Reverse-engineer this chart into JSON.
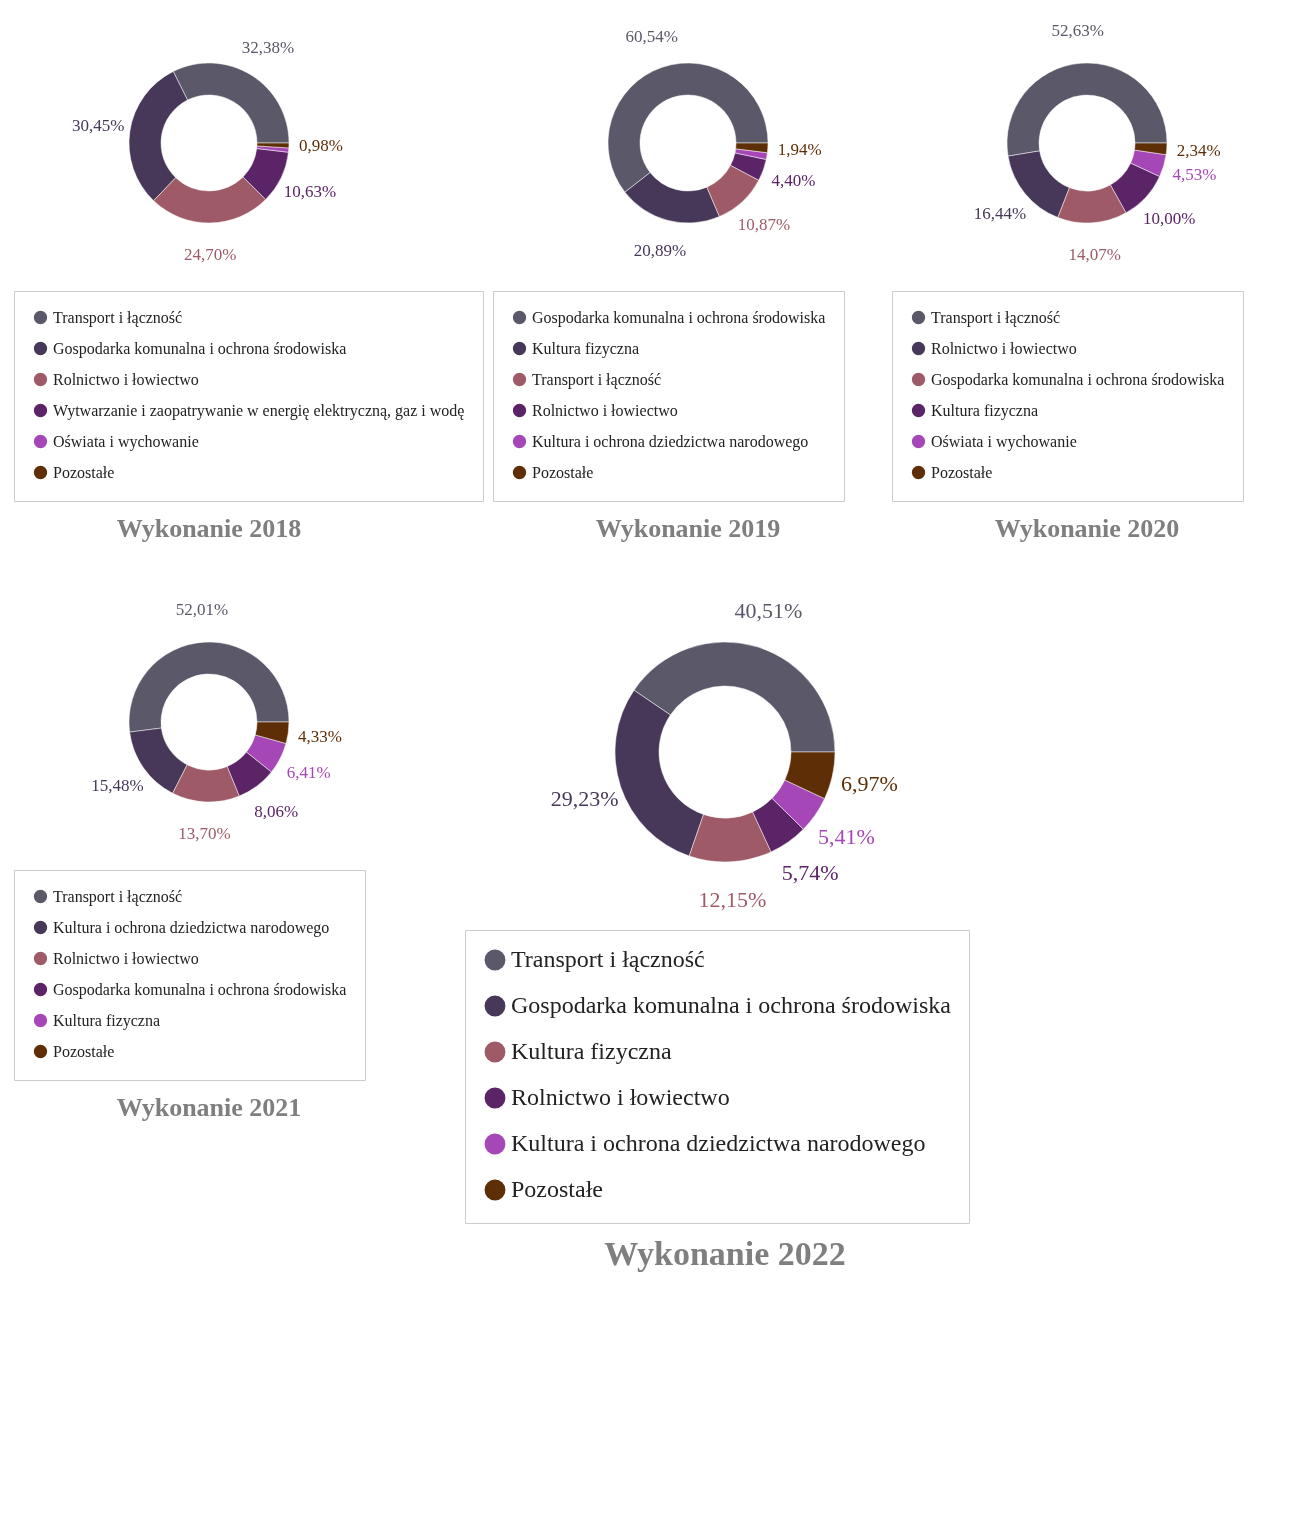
{
  "chart_data": [
    {
      "type": "donut",
      "title": "Wykonanie 2018",
      "legend": "bottom",
      "categories": [
        "Transport i łączność",
        "Gospodarka komunalna i ochrona środowiska",
        "Rolnictwo i łowiectwo",
        "Wytwarzanie i zaopatrywanie w energię elektryczną, gaz i wodę",
        "Oświata i wychowanie",
        "Pozostałe"
      ],
      "values": [
        32.38,
        30.45,
        24.7,
        10.63,
        0.86,
        0.98
      ],
      "value_labels": [
        "32,38%",
        "30,45%",
        "24,70%",
        "10,63%",
        null,
        "0,98%"
      ],
      "colors": [
        "#5b5869",
        "#47385a",
        "#9e5a66",
        "#5a2466",
        "#a647b8",
        "#5e2e06"
      ]
    },
    {
      "type": "donut",
      "title": "Wykonanie 2019",
      "legend": "bottom",
      "categories": [
        "Gospodarka komunalna i ochrona środowiska",
        "Kultura fizyczna",
        "Transport i łączność",
        "Rolnictwo i łowiectwo",
        "Kultura i ochrona dziedzictwa narodowego",
        "Pozostałe"
      ],
      "values": [
        60.54,
        20.89,
        10.87,
        4.4,
        1.36,
        1.94
      ],
      "value_labels": [
        "60,54%",
        "20,89%",
        "10,87%",
        "4,40%",
        null,
        "1,94%"
      ],
      "colors": [
        "#5b5869",
        "#47385a",
        "#9e5a66",
        "#5a2466",
        "#a647b8",
        "#5e2e06"
      ]
    },
    {
      "type": "donut",
      "title": "Wykonanie 2020",
      "legend": "bottom",
      "categories": [
        "Transport i łączność",
        "Rolnictwo i łowiectwo",
        "Gospodarka komunalna i ochrona środowiska",
        "Kultura fizyczna",
        "Oświata i wychowanie",
        "Pozostałe"
      ],
      "values": [
        52.63,
        16.44,
        14.07,
        10.0,
        4.53,
        2.34
      ],
      "value_labels": [
        "52,63%",
        "16,44%",
        "14,07%",
        "10,00%",
        "4,53%",
        "2,34%"
      ],
      "colors": [
        "#5b5869",
        "#47385a",
        "#9e5a66",
        "#5a2466",
        "#a647b8",
        "#5e2e06"
      ]
    },
    {
      "type": "donut",
      "title": "Wykonanie 2021",
      "legend": "bottom",
      "categories": [
        "Transport i łączność",
        "Kultura i ochrona dziedzictwa narodowego",
        "Rolnictwo i łowiectwo",
        "Gospodarka komunalna i ochrona środowiska",
        "Kultura fizyczna",
        "Pozostałe"
      ],
      "values": [
        52.01,
        15.48,
        13.7,
        8.06,
        6.41,
        4.33
      ],
      "value_labels": [
        "52,01%",
        "15,48%",
        "13,70%",
        "8,06%",
        "6,41%",
        "4,33%"
      ],
      "colors": [
        "#5b5869",
        "#47385a",
        "#9e5a66",
        "#5a2466",
        "#a647b8",
        "#5e2e06"
      ]
    },
    {
      "type": "donut",
      "title": "Wykonanie 2022",
      "legend": "bottom",
      "categories": [
        "Transport i łączność",
        "Gospodarka komunalna i ochrona środowiska",
        "Kultura fizyczna",
        "Rolnictwo i łowiectwo",
        "Kultura i ochrona dziedzictwa narodowego",
        "Pozostałe"
      ],
      "values": [
        40.51,
        29.23,
        12.15,
        5.74,
        5.41,
        6.97
      ],
      "value_labels": [
        "40,51%",
        "29,23%",
        "12,15%",
        "5,74%",
        "5,41%",
        "6,97%"
      ],
      "colors": [
        "#5b5869",
        "#47385a",
        "#9e5a66",
        "#5a2466",
        "#a647b8",
        "#5e2e06"
      ]
    }
  ]
}
